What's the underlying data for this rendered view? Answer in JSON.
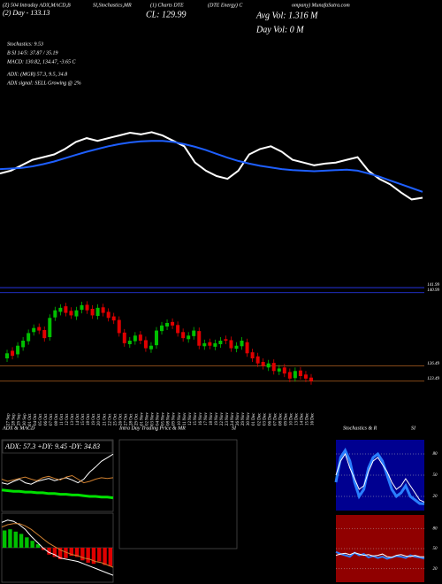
{
  "header": {
    "line1": [
      "(Z) 504 Intraday ADX,MACD,B",
      "SI,Stochastics,MR",
      "(1) Charts DTE",
      "(DTE Energy) C",
      "ompany) MunafaSutra.com"
    ],
    "day": "(2) Day - 133.13",
    "close": "CL: 129.99",
    "avg_vol": "Avg Vol: 1.316  M",
    "day_vol": "Day Vol: 0  M",
    "stats": [
      "Stochastics: 9.53",
      "B      SI 14/5: 37.87 / 35.19",
      "MACD: 130.82, 134.47, -3.65 C",
      "ADX:          (MGR) 57.3, 9.5, 34.8",
      "ADX  signal: SELL Growing @ 2%"
    ]
  },
  "chart_data": [
    {
      "type": "line",
      "ylim": [
        123,
        138.5
      ],
      "series": [
        {
          "color": "#ffffff",
          "values": [
            131.0,
            131.5,
            132.5,
            133.5,
            134.0,
            134.5,
            135.5,
            136.8,
            137.5,
            137.0,
            137.5,
            138.0,
            138.5,
            138.2,
            138.6,
            138.0,
            137.0,
            136.0,
            133.0,
            131.5,
            130.5,
            130.0,
            131.5,
            134.5,
            135.5,
            136.0,
            135.0,
            133.5,
            133.0,
            132.5,
            132.8,
            133.0,
            133.5,
            134.0,
            131.5,
            130.0,
            129.0,
            127.5,
            126.2,
            126.5
          ]
        },
        {
          "color": "#1e5fff",
          "values": [
            131.8,
            131.9,
            132.0,
            132.3,
            132.7,
            133.2,
            133.8,
            134.4,
            135.0,
            135.5,
            136.0,
            136.4,
            136.7,
            136.9,
            137.0,
            137.0,
            136.8,
            136.4,
            135.9,
            135.3,
            134.6,
            133.9,
            133.3,
            132.8,
            132.4,
            132.1,
            131.8,
            131.6,
            131.5,
            131.4,
            131.5,
            131.6,
            131.7,
            131.5,
            131.0,
            130.4,
            129.7,
            129.0,
            128.3,
            127.6
          ]
        }
      ]
    },
    {
      "type": "candlestick",
      "ylim": [
        121,
        142
      ],
      "categories": [
        "27 Sep",
        "28 Sep",
        "29 Sep",
        "30 Sep",
        "01 Oct",
        "04 Oct",
        "05 Oct",
        "06 Oct",
        "07 Oct",
        "08 Oct",
        "11 Oct",
        "12 Oct",
        "13 Oct",
        "14 Oct",
        "15 Oct",
        "18 Oct",
        "19 Oct",
        "20 Oct",
        "21 Oct",
        "22 Oct",
        "25 Oct",
        "26 Oct",
        "27 Oct",
        "28 Oct",
        "29 Oct",
        "01 Nov",
        "02 Nov",
        "03 Nov",
        "04 Nov",
        "05 Nov",
        "08 Nov",
        "09 Nov",
        "10 Nov",
        "11 Nov",
        "12 Nov",
        "15 Nov",
        "16 Nov",
        "17 Nov",
        "18 Nov",
        "19 Nov",
        "22 Nov",
        "23 Nov",
        "24 Nov",
        "26 Nov",
        "29 Nov",
        "30 Nov",
        "01 Dec",
        "02 Dec",
        "03 Dec",
        "06 Dec",
        "07 Dec",
        "08 Dec",
        "09 Dec",
        "10 Dec",
        "13 Dec",
        "14 Dec",
        "15 Dec",
        "16 Dec"
      ],
      "open": [
        128.0,
        129.5,
        128.8,
        130.2,
        131.4,
        133.2,
        134.2,
        133.6,
        132.2,
        136.1,
        137.2,
        138.3,
        137.4,
        136.3,
        137.6,
        138.6,
        137.8,
        136.4,
        138.1,
        137.2,
        136.3,
        135.6,
        133.1,
        130.8,
        131.4,
        132.7,
        131.6,
        129.8,
        130.6,
        133.4,
        134.3,
        135.2,
        134.6,
        133.2,
        131.8,
        132.4,
        133.4,
        130.4,
        131.2,
        130.3,
        130.8,
        131.8,
        131.6,
        129.9,
        130.4,
        131.2,
        129.2,
        128.4,
        127.3,
        126.2,
        127.1,
        125.4,
        126.2,
        125.3,
        124.1,
        125.6,
        124.8,
        124.2
      ],
      "high": [
        129.7,
        130.2,
        131.2,
        132.2,
        133.7,
        134.7,
        134.9,
        134.3,
        136.7,
        138.2,
        138.7,
        139.0,
        138.1,
        138.2,
        139.2,
        139.3,
        138.5,
        138.7,
        138.8,
        137.9,
        137.0,
        136.3,
        133.8,
        132.2,
        133.2,
        133.4,
        132.3,
        131.2,
        134.2,
        135.2,
        135.7,
        135.9,
        135.3,
        133.9,
        133.2,
        134.2,
        134.1,
        131.7,
        131.9,
        131.7,
        132.2,
        132.5,
        132.3,
        131.2,
        132.2,
        131.9,
        129.9,
        129.1,
        128.0,
        127.7,
        127.8,
        126.7,
        126.9,
        126.0,
        126.2,
        126.3,
        125.5,
        124.9
      ],
      "low": [
        127.3,
        127.8,
        128.1,
        129.5,
        130.7,
        132.5,
        132.8,
        131.3,
        131.5,
        135.4,
        136.5,
        136.3,
        135.8,
        135.6,
        136.9,
        136.8,
        135.8,
        135.7,
        136.3,
        135.3,
        134.8,
        132.3,
        130.3,
        130.1,
        130.7,
        130.8,
        129.3,
        129.1,
        129.9,
        132.7,
        133.6,
        133.8,
        132.3,
        131.3,
        131.1,
        131.7,
        129.8,
        129.7,
        129.8,
        129.6,
        130.1,
        130.8,
        129.3,
        129.2,
        129.7,
        128.3,
        127.3,
        126.3,
        125.8,
        125.5,
        124.8,
        124.7,
        124.3,
        123.3,
        123.4,
        123.8,
        123.3,
        122.8
      ],
      "close": [
        129.0,
        128.5,
        130.5,
        131.5,
        133.0,
        134.0,
        133.5,
        132.0,
        136.0,
        137.5,
        138.0,
        137.0,
        136.5,
        137.5,
        138.5,
        137.5,
        136.5,
        138.0,
        137.0,
        136.0,
        135.5,
        133.0,
        131.0,
        131.5,
        132.5,
        131.5,
        130.0,
        130.5,
        133.5,
        134.5,
        135.0,
        134.5,
        133.0,
        132.0,
        132.5,
        133.5,
        130.5,
        131.0,
        130.5,
        131.0,
        131.5,
        131.5,
        130.0,
        130.5,
        131.5,
        129.0,
        128.0,
        127.0,
        126.5,
        127.0,
        125.5,
        126.0,
        125.0,
        124.0,
        125.5,
        124.5,
        124.0,
        123.5
      ],
      "up_color": "#00c000",
      "down_color": "#e00000",
      "price_levels": [
        141.99,
        140.99,
        126.49,
        123.49
      ],
      "level_colors": [
        "#2a3cff",
        "#2a3cff",
        "#b06020",
        "#b06020"
      ]
    },
    {
      "type": "line",
      "title": "ADX  & MACD",
      "label": "ADX: 57.3 +DY: 9.45 -DY: 34.83",
      "ylim": [
        0,
        100
      ],
      "series": [
        {
          "color": "#00e000",
          "width": 3,
          "values": [
            30,
            29,
            28,
            28,
            27,
            27,
            26,
            26,
            25,
            25,
            24,
            24,
            23,
            23,
            22,
            21,
            21,
            20,
            20,
            19
          ]
        },
        {
          "color": "#ffffff",
          "width": 1,
          "values": [
            40,
            38,
            42,
            45,
            40,
            38,
            42,
            44,
            46,
            43,
            45,
            47,
            44,
            40,
            45,
            55,
            62,
            70,
            75,
            80
          ]
        },
        {
          "color": "#d08030",
          "width": 1,
          "values": [
            45,
            42,
            44,
            46,
            48,
            45,
            43,
            47,
            49,
            46,
            44,
            48,
            50,
            45,
            40,
            42,
            45,
            47,
            46,
            47
          ]
        }
      ]
    },
    {
      "type": "macd",
      "ylim": [
        -3,
        3
      ],
      "up_color": "#00c000",
      "down_color": "#e00000",
      "histogram": [
        1.5,
        1.6,
        1.4,
        1.2,
        0.9,
        0.6,
        0.3,
        -0.2,
        -0.6,
        -0.8,
        -1.0,
        -0.9,
        -0.7,
        -0.8,
        -1.1,
        -1.3,
        -1.4,
        -1.2,
        -1.5,
        -1.6
      ],
      "series": [
        {
          "color": "#ffffff",
          "width": 1,
          "values": [
            2.2,
            2.4,
            2.3,
            2.0,
            1.6,
            1.0,
            0.5,
            0.0,
            -0.4,
            -0.6,
            -0.9,
            -1.0,
            -1.1,
            -1.2,
            -1.4,
            -1.6,
            -1.8,
            -2.0,
            -2.2,
            -2.4
          ]
        },
        {
          "color": "#d08030",
          "width": 1,
          "values": [
            1.8,
            2.0,
            2.1,
            2.1,
            1.9,
            1.6,
            1.2,
            0.8,
            0.4,
            0.1,
            -0.2,
            -0.4,
            -0.6,
            -0.7,
            -0.9,
            -1.0,
            -1.2,
            -1.3,
            -1.5,
            -1.7
          ]
        }
      ]
    },
    {
      "type": "empty",
      "title": "Intra Day Trading Price  & MR",
      "title_end": "SI"
    },
    {
      "type": "line",
      "title": "Stochastics  & R",
      "title_end": "SI",
      "ylim": [
        0,
        100
      ],
      "yticks": [
        20,
        50,
        80
      ],
      "background": "#000090",
      "series": [
        {
          "color": "#2a7fff",
          "width": 3,
          "values": [
            40,
            75,
            85,
            70,
            40,
            20,
            30,
            60,
            75,
            80,
            70,
            50,
            30,
            20,
            25,
            35,
            20,
            15,
            10,
            9.53
          ]
        },
        {
          "color": "#ffffff",
          "width": 1,
          "values": [
            50,
            70,
            80,
            60,
            45,
            30,
            35,
            55,
            70,
            75,
            65,
            55,
            40,
            30,
            35,
            45,
            35,
            25,
            15,
            12
          ]
        }
      ]
    },
    {
      "type": "line",
      "ylim": [
        0,
        100
      ],
      "yticks": [
        20,
        50,
        80
      ],
      "background": "#900000",
      "series": [
        {
          "color": "#2a7fff",
          "width": 2,
          "values": [
            45,
            42,
            40,
            38,
            44,
            40,
            42,
            37,
            39,
            36,
            38,
            35,
            37,
            39,
            38,
            36,
            40,
            38,
            37,
            35.19
          ]
        },
        {
          "color": "#ffffff",
          "width": 1,
          "values": [
            40,
            42,
            43,
            41,
            44,
            42,
            40,
            41,
            39,
            40,
            42,
            38,
            37,
            40,
            41,
            39,
            38,
            40,
            38,
            37.87
          ]
        }
      ]
    }
  ]
}
